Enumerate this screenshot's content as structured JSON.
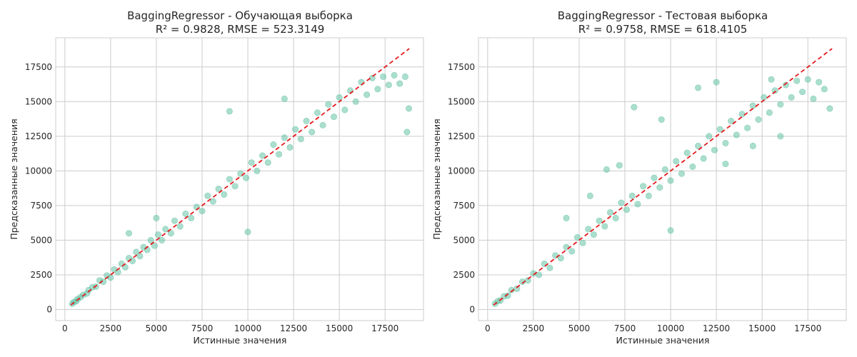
{
  "style": {
    "point_color": "#66c2a5",
    "line_color": "#e41a1c",
    "grid_color": "#cccccc",
    "text_color": "#262626"
  },
  "chart_data": [
    {
      "type": "scatter",
      "title": "BaggingRegressor - Обучающая выборка",
      "subtitle": "R² = 0.9828, RMSE = 523.3149",
      "xlabel": "Истинные значения",
      "ylabel": "Предсказанные значения",
      "xlim": [
        -500,
        19600
      ],
      "ylim": [
        -800,
        19600
      ],
      "xticks": [
        0,
        2500,
        5000,
        7500,
        10000,
        12500,
        15000,
        17500
      ],
      "yticks": [
        0,
        2500,
        5000,
        7500,
        10000,
        12500,
        15000,
        17500
      ],
      "grid": true,
      "reference_line": {
        "style": "dashed",
        "x": [
          326,
          18823
        ],
        "y": [
          326,
          18823
        ]
      },
      "points": [
        [
          400,
          420
        ],
        [
          500,
          540
        ],
        [
          620,
          600
        ],
        [
          700,
          760
        ],
        [
          850,
          880
        ],
        [
          1000,
          1050
        ],
        [
          1200,
          1150
        ],
        [
          1300,
          1400
        ],
        [
          1500,
          1600
        ],
        [
          1700,
          1650
        ],
        [
          1900,
          2100
        ],
        [
          2100,
          2000
        ],
        [
          2300,
          2450
        ],
        [
          2500,
          2300
        ],
        [
          2700,
          2900
        ],
        [
          2900,
          2700
        ],
        [
          3100,
          3300
        ],
        [
          3300,
          3050
        ],
        [
          3500,
          3700
        ],
        [
          3700,
          3500
        ],
        [
          3900,
          4150
        ],
        [
          4100,
          3850
        ],
        [
          4300,
          4500
        ],
        [
          4500,
          4300
        ],
        [
          4700,
          5000
        ],
        [
          4900,
          4600
        ],
        [
          5100,
          5400
        ],
        [
          5300,
          5000
        ],
        [
          5500,
          5800
        ],
        [
          5800,
          5500
        ],
        [
          6000,
          6400
        ],
        [
          6300,
          6000
        ],
        [
          6600,
          6900
        ],
        [
          6900,
          6600
        ],
        [
          7200,
          7400
        ],
        [
          7500,
          7100
        ],
        [
          7800,
          8200
        ],
        [
          8100,
          7800
        ],
        [
          8400,
          8700
        ],
        [
          8700,
          8300
        ],
        [
          9000,
          9400
        ],
        [
          9300,
          8900
        ],
        [
          9600,
          9800
        ],
        [
          9900,
          9500
        ],
        [
          10200,
          10600
        ],
        [
          10500,
          10000
        ],
        [
          10800,
          11100
        ],
        [
          11100,
          10600
        ],
        [
          11400,
          11900
        ],
        [
          11700,
          11200
        ],
        [
          12000,
          12400
        ],
        [
          12300,
          11700
        ],
        [
          12600,
          13000
        ],
        [
          12900,
          12300
        ],
        [
          13200,
          13600
        ],
        [
          13500,
          12800
        ],
        [
          13800,
          14200
        ],
        [
          14100,
          13300
        ],
        [
          14400,
          14800
        ],
        [
          14700,
          13900
        ],
        [
          15000,
          15300
        ],
        [
          15300,
          14400
        ],
        [
          15600,
          15800
        ],
        [
          15900,
          15000
        ],
        [
          16200,
          16400
        ],
        [
          16500,
          15500
        ],
        [
          16800,
          16700
        ],
        [
          17100,
          15900
        ],
        [
          17400,
          16800
        ],
        [
          17700,
          16200
        ],
        [
          18000,
          16900
        ],
        [
          18300,
          16300
        ],
        [
          18600,
          16800
        ],
        [
          18800,
          14500
        ],
        [
          18700,
          12800
        ],
        [
          10000,
          5600
        ],
        [
          5000,
          6600
        ],
        [
          9000,
          14300
        ],
        [
          3500,
          5500
        ],
        [
          12000,
          15200
        ]
      ]
    },
    {
      "type": "scatter",
      "title": "BaggingRegressor - Тестовая выборка",
      "subtitle": "R² = 0.9758, RMSE = 618.4105",
      "xlabel": "Истинные значения",
      "ylabel": "Предсказанные значения",
      "xlim": [
        -500,
        19600
      ],
      "ylim": [
        -800,
        19600
      ],
      "xticks": [
        0,
        2500,
        5000,
        7500,
        10000,
        12500,
        15000,
        17500
      ],
      "yticks": [
        0,
        2500,
        5000,
        7500,
        10000,
        12500,
        15000,
        17500
      ],
      "grid": true,
      "reference_line": {
        "style": "dashed",
        "x": [
          326,
          18823
        ],
        "y": [
          326,
          18823
        ]
      },
      "points": [
        [
          400,
          420
        ],
        [
          550,
          600
        ],
        [
          700,
          650
        ],
        [
          900,
          950
        ],
        [
          1100,
          1000
        ],
        [
          1300,
          1400
        ],
        [
          1600,
          1500
        ],
        [
          1900,
          2000
        ],
        [
          2200,
          2100
        ],
        [
          2500,
          2600
        ],
        [
          2800,
          2500
        ],
        [
          3100,
          3300
        ],
        [
          3400,
          3000
        ],
        [
          3700,
          3900
        ],
        [
          4000,
          3700
        ],
        [
          4300,
          4500
        ],
        [
          4600,
          4200
        ],
        [
          4900,
          5200
        ],
        [
          5200,
          4800
        ],
        [
          5500,
          5800
        ],
        [
          5800,
          5400
        ],
        [
          6100,
          6400
        ],
        [
          6400,
          6000
        ],
        [
          6700,
          7000
        ],
        [
          7000,
          6600
        ],
        [
          7300,
          7700
        ],
        [
          7600,
          7200
        ],
        [
          7900,
          8200
        ],
        [
          8200,
          7600
        ],
        [
          8500,
          8900
        ],
        [
          8800,
          8200
        ],
        [
          9100,
          9500
        ],
        [
          9400,
          8800
        ],
        [
          9700,
          10100
        ],
        [
          10000,
          9300
        ],
        [
          10300,
          10700
        ],
        [
          10600,
          9800
        ],
        [
          10900,
          11300
        ],
        [
          11200,
          10300
        ],
        [
          11500,
          11800
        ],
        [
          11800,
          10900
        ],
        [
          12100,
          12500
        ],
        [
          12400,
          11500
        ],
        [
          12700,
          13000
        ],
        [
          13000,
          12000
        ],
        [
          13300,
          13600
        ],
        [
          13600,
          12600
        ],
        [
          13900,
          14100
        ],
        [
          14200,
          13100
        ],
        [
          14500,
          14700
        ],
        [
          14800,
          13700
        ],
        [
          15100,
          15300
        ],
        [
          15400,
          14200
        ],
        [
          15700,
          15800
        ],
        [
          16000,
          14800
        ],
        [
          16300,
          16200
        ],
        [
          16600,
          15300
        ],
        [
          16900,
          16500
        ],
        [
          17200,
          15700
        ],
        [
          17500,
          16600
        ],
        [
          17800,
          15200
        ],
        [
          18100,
          16400
        ],
        [
          18400,
          15900
        ],
        [
          18700,
          14500
        ],
        [
          10000,
          5700
        ],
        [
          8000,
          14600
        ],
        [
          6500,
          10100
        ],
        [
          11500,
          16000
        ],
        [
          12500,
          16400
        ],
        [
          7200,
          10400
        ],
        [
          14500,
          11800
        ],
        [
          9500,
          13700
        ],
        [
          16000,
          12500
        ],
        [
          4300,
          6600
        ],
        [
          13000,
          10500
        ],
        [
          15500,
          16600
        ],
        [
          5600,
          8200
        ]
      ]
    }
  ]
}
